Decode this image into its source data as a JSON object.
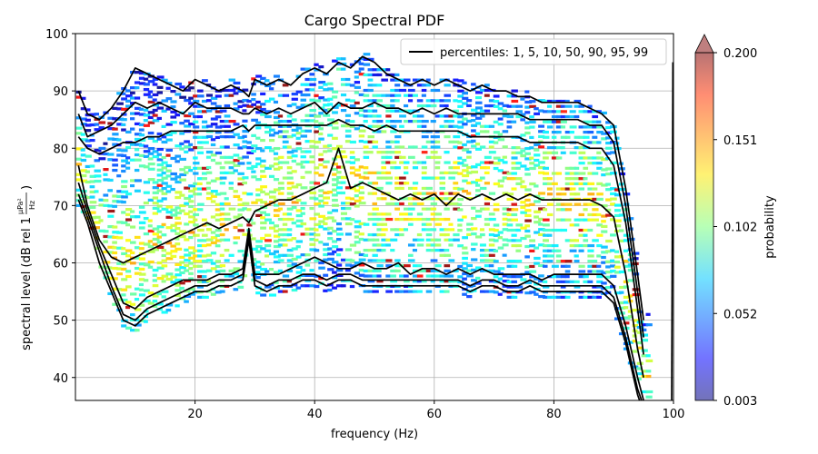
{
  "chart_data": {
    "type": "heatmap",
    "title": "Cargo Spectral PDF",
    "xlabel": "frequency (Hz)",
    "ylabel": "spectral level (dB rel 1 µPa²/Hz)",
    "ylabel_main": "spectral level (dB rel 1",
    "ylabel_unit_num": "µPa²",
    "ylabel_unit_den": "Hz",
    "ylabel_close": ")",
    "xlim": [
      0,
      100
    ],
    "ylim": [
      36,
      100
    ],
    "xticks": [
      20,
      40,
      60,
      80,
      100
    ],
    "yticks": [
      40,
      50,
      60,
      70,
      80,
      90,
      100
    ],
    "grid": true,
    "legend": {
      "position": "top-right",
      "label": "percentiles: 1, 5, 10, 50, 90, 95, 99"
    },
    "colorbar": {
      "label": "probability",
      "colormap": "jet",
      "range": [
        0.003,
        0.2
      ],
      "ticks": [
        "0.200",
        "0.151",
        "0.102",
        "0.052",
        "0.003"
      ],
      "extend": "max"
    },
    "series": [
      {
        "name": "p1",
        "x": [
          0.5,
          2,
          4,
          6,
          8,
          10,
          12,
          14,
          16,
          18,
          20,
          22,
          24,
          26,
          28,
          29,
          30,
          32,
          34,
          36,
          38,
          40,
          42,
          44,
          46,
          48,
          50,
          52,
          54,
          56,
          58,
          60,
          62,
          64,
          66,
          68,
          70,
          72,
          74,
          76,
          78,
          80,
          82,
          84,
          86,
          88,
          90,
          92,
          94,
          95
        ],
        "y": [
          71,
          67,
          60,
          55,
          50,
          49,
          51,
          52,
          53,
          54,
          55,
          55,
          56,
          56,
          57,
          64,
          56,
          55,
          56,
          56,
          57,
          57,
          56,
          57,
          57,
          56,
          56,
          56,
          56,
          56,
          56,
          56,
          56,
          56,
          55,
          56,
          56,
          55,
          55,
          56,
          55,
          55,
          55,
          55,
          55,
          55,
          53,
          46,
          37,
          34
        ]
      },
      {
        "name": "p5",
        "x": [
          0.5,
          2,
          4,
          6,
          8,
          10,
          12,
          14,
          16,
          18,
          20,
          22,
          24,
          26,
          28,
          29,
          30,
          32,
          34,
          36,
          38,
          40,
          42,
          44,
          46,
          48,
          50,
          52,
          54,
          56,
          58,
          60,
          62,
          64,
          66,
          68,
          70,
          72,
          74,
          76,
          78,
          80,
          82,
          84,
          86,
          88,
          90,
          92,
          94,
          95
        ],
        "y": [
          72,
          68,
          62,
          56,
          51,
          50,
          52,
          53,
          54,
          55,
          56,
          56,
          57,
          57,
          58,
          65,
          57,
          56,
          57,
          57,
          58,
          58,
          57,
          58,
          58,
          57,
          57,
          57,
          57,
          57,
          57,
          57,
          57,
          57,
          56,
          57,
          57,
          56,
          56,
          57,
          56,
          56,
          56,
          56,
          56,
          56,
          54,
          47,
          38,
          35
        ]
      },
      {
        "name": "p10",
        "x": [
          0.5,
          2,
          4,
          6,
          8,
          10,
          12,
          14,
          16,
          18,
          20,
          22,
          24,
          26,
          28,
          29,
          30,
          32,
          34,
          36,
          38,
          40,
          42,
          44,
          46,
          48,
          50,
          52,
          54,
          56,
          58,
          60,
          62,
          64,
          66,
          68,
          70,
          72,
          74,
          76,
          78,
          80,
          82,
          84,
          86,
          88,
          90,
          92,
          94,
          95
        ],
        "y": [
          74,
          69,
          63,
          58,
          53,
          52,
          54,
          55,
          56,
          57,
          57,
          57,
          58,
          58,
          59,
          66,
          58,
          58,
          58,
          59,
          60,
          61,
          60,
          59,
          59,
          60,
          59,
          59,
          60,
          58,
          59,
          59,
          58,
          59,
          58,
          59,
          58,
          58,
          58,
          58,
          57,
          58,
          58,
          58,
          58,
          58,
          56,
          49,
          40,
          36
        ]
      },
      {
        "name": "p50",
        "x": [
          0.5,
          2,
          4,
          6,
          8,
          10,
          12,
          14,
          16,
          18,
          20,
          22,
          24,
          26,
          28,
          29,
          30,
          32,
          34,
          36,
          38,
          40,
          42,
          44,
          46,
          48,
          50,
          52,
          54,
          56,
          58,
          60,
          62,
          64,
          66,
          68,
          70,
          72,
          74,
          76,
          78,
          80,
          82,
          84,
          86,
          88,
          90,
          92,
          94,
          95
        ],
        "y": [
          77,
          70,
          64,
          61,
          60,
          61,
          62,
          63,
          64,
          65,
          66,
          67,
          66,
          67,
          68,
          67,
          69,
          70,
          71,
          71,
          72,
          73,
          74,
          80,
          73,
          74,
          73,
          72,
          71,
          72,
          71,
          72,
          70,
          72,
          71,
          72,
          71,
          72,
          71,
          72,
          71,
          71,
          71,
          71,
          71,
          70,
          68,
          58,
          45,
          40
        ]
      },
      {
        "name": "p90",
        "x": [
          0.5,
          2,
          4,
          6,
          8,
          10,
          12,
          14,
          16,
          18,
          20,
          22,
          24,
          26,
          28,
          29,
          30,
          32,
          34,
          36,
          38,
          40,
          42,
          44,
          46,
          48,
          50,
          52,
          54,
          56,
          58,
          60,
          62,
          64,
          66,
          68,
          70,
          72,
          74,
          76,
          78,
          80,
          82,
          84,
          86,
          88,
          90,
          92,
          94,
          95
        ],
        "y": [
          82,
          80,
          79,
          80,
          81,
          81,
          82,
          82,
          83,
          83,
          83,
          83,
          83,
          83,
          84,
          83,
          84,
          84,
          84,
          84,
          84,
          84,
          84,
          85,
          84,
          84,
          83,
          84,
          83,
          83,
          83,
          83,
          83,
          83,
          82,
          82,
          82,
          82,
          82,
          81,
          81,
          81,
          81,
          81,
          80,
          80,
          77,
          67,
          52,
          44
        ]
      },
      {
        "name": "p95",
        "x": [
          0.5,
          2,
          4,
          6,
          8,
          10,
          12,
          14,
          16,
          18,
          20,
          22,
          24,
          26,
          28,
          29,
          30,
          32,
          34,
          36,
          38,
          40,
          42,
          44,
          46,
          48,
          50,
          52,
          54,
          56,
          58,
          60,
          62,
          64,
          66,
          68,
          70,
          72,
          74,
          76,
          78,
          80,
          82,
          84,
          86,
          88,
          90,
          92,
          94,
          95
        ],
        "y": [
          86,
          82,
          83,
          84,
          86,
          88,
          87,
          88,
          87,
          86,
          88,
          87,
          87,
          87,
          86,
          86,
          87,
          86,
          87,
          86,
          87,
          88,
          86,
          88,
          87,
          87,
          88,
          87,
          87,
          86,
          87,
          86,
          87,
          86,
          86,
          86,
          86,
          86,
          86,
          85,
          85,
          85,
          85,
          85,
          84,
          84,
          81,
          70,
          55,
          47
        ]
      },
      {
        "name": "p99",
        "x": [
          0.5,
          2,
          4,
          6,
          8,
          10,
          12,
          14,
          16,
          18,
          20,
          22,
          24,
          26,
          28,
          29,
          30,
          32,
          34,
          36,
          38,
          40,
          42,
          44,
          46,
          48,
          50,
          52,
          54,
          56,
          58,
          60,
          62,
          64,
          66,
          68,
          70,
          72,
          74,
          76,
          78,
          80,
          82,
          84,
          86,
          88,
          90,
          92,
          94,
          95
        ],
        "y": [
          90,
          86,
          85,
          87,
          90,
          94,
          93,
          92,
          91,
          90,
          92,
          91,
          90,
          91,
          90,
          89,
          92,
          91,
          92,
          91,
          93,
          94,
          93,
          95,
          94,
          96,
          95,
          93,
          92,
          91,
          92,
          91,
          92,
          91,
          90,
          91,
          90,
          90,
          89,
          89,
          88,
          88,
          88,
          88,
          87,
          86,
          84,
          73,
          58,
          50
        ]
      }
    ]
  }
}
